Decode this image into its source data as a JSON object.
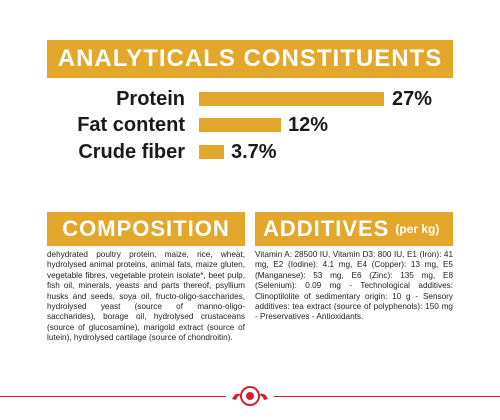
{
  "analytics": {
    "title": "ANALYTICALS CONSTITUENTS",
    "items": [
      {
        "label": "Protein",
        "value": "27%",
        "percent": 27
      },
      {
        "label": "Fat content",
        "value": "12%",
        "percent": 12
      },
      {
        "label": "Crude fiber",
        "value": "3.7%",
        "percent": 3.7
      }
    ]
  },
  "composition": {
    "title": "COMPOSITION",
    "text": "dehydrated poultry protein, maize, rice, wheat, hydrolysed animal proteins, animal fats, maize gluten, vegetable fibres, vegetable protein isolate*, beet pulp, fish oil, minerals, yeasts and parts thereof, psyllium husks and seeds, soya oil, fructo-oligo-saccharides, hydrolysed yeast (source of manno-oligo-saccharides), borage oil, hydrolysed crustaceans (source of glucosamine), marigold extract (source of lutein), hydrolysed cartilage (source of chondroitin)."
  },
  "additives": {
    "title": "ADDITIVES",
    "suffix": "(per kg)",
    "text": "Vitamin A: 28500 IU, Vitamin D3: 800 IU, E1 (Iron): 41 mg, E2 (Iodine): 4.1 mg, E4 (Copper): 13 mg, E5 (Manganese): 53 mg, E6 (Zinc): 135 mg, E8 (Selenium): 0.09 mg - Technological additives: Clinoptilolite of sedimentary origin: 10 g - Sensory additives: tea extract (source of polyphenols): 150 mg - Preservatives - Antioxidants."
  },
  "colors": {
    "accent": "#e3a72b",
    "brand_red": "#d4202e"
  },
  "footer": {
    "logo_icon": "royal-canin-crown-logo-icon"
  }
}
